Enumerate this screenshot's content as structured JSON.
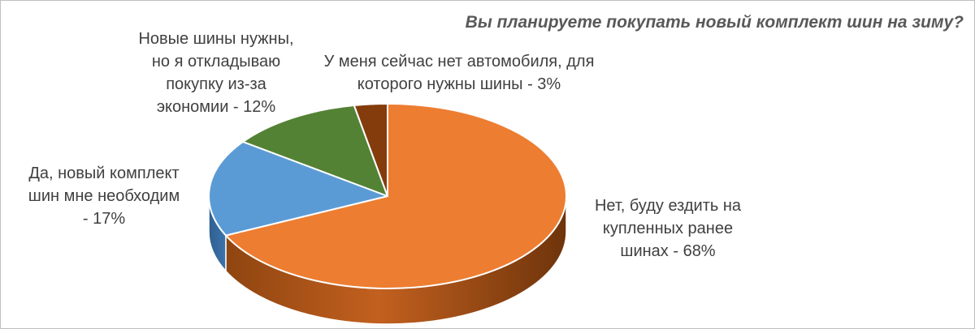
{
  "chart_data": {
    "type": "pie",
    "title": "Вы планируете покупать новый комплект шин на зиму?",
    "slices": [
      {
        "label": "Нет, буду ездить на\nкупленных ранее\nшинах - 68%",
        "value": 68,
        "color": "#ED7D31"
      },
      {
        "label": "Да, новый комплект\nшин мне необходим\n- 17%",
        "value": 17,
        "color": "#5B9BD5"
      },
      {
        "label": "Новые шины нужны,\nно я откладываю\nпокупку из-за\nэкономии - 12%",
        "value": 12,
        "color": "#548235"
      },
      {
        "label": "У меня сейчас нет автомобиля, для\nкоторого нужны шины - 3%",
        "value": 3,
        "color": "#843C0C"
      }
    ],
    "legend": "none"
  }
}
